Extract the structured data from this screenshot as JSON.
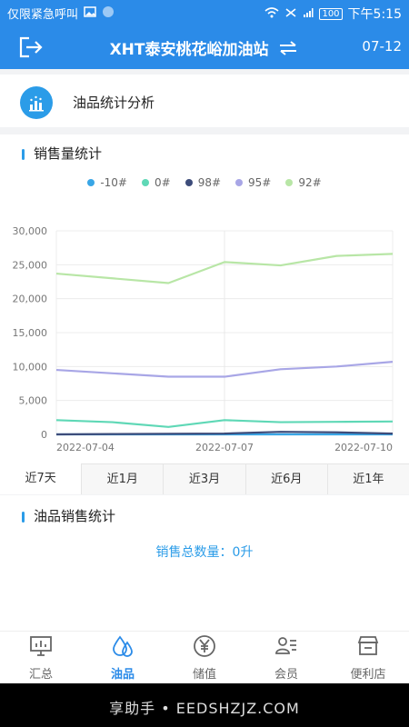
{
  "status_bar": {
    "carrier": "仅限紧急呼叫",
    "battery": "100",
    "time": "下午5:15"
  },
  "header": {
    "title": "XHT泰安桃花峪加油站",
    "date": "07-12"
  },
  "title_row": {
    "label": "油品统计分析"
  },
  "sales_volume": {
    "heading": "销售量统计"
  },
  "chart_data": {
    "type": "line",
    "x": [
      "2022-07-04",
      "2022-07-05",
      "2022-07-06",
      "2022-07-07",
      "2022-07-08",
      "2022-07-09",
      "2022-07-10"
    ],
    "x_tick_labels": [
      "2022-07-04",
      "2022-07-07",
      "2022-07-10"
    ],
    "ylim": [
      0,
      30000
    ],
    "y_ticks": [
      0,
      5000,
      10000,
      15000,
      20000,
      25000,
      30000
    ],
    "y_tick_labels": [
      "0",
      "5,000",
      "10,000",
      "15,000",
      "20,000",
      "25,000",
      "30,000"
    ],
    "grid": true,
    "legend_position": "top-center",
    "series": [
      {
        "name": "-10#",
        "color": "#39a6e6",
        "values": [
          0,
          0,
          0,
          0,
          0,
          0,
          0
        ]
      },
      {
        "name": "0#",
        "color": "#5fd8b6",
        "values": [
          2100,
          1800,
          1100,
          2100,
          1800,
          1850,
          1900
        ]
      },
      {
        "name": "98#",
        "color": "#3d4c7a",
        "values": [
          0,
          50,
          80,
          120,
          380,
          300,
          120
        ]
      },
      {
        "name": "95#",
        "color": "#a8a6e6",
        "values": [
          9500,
          9000,
          8500,
          8500,
          9600,
          10000,
          10700
        ]
      },
      {
        "name": "92#",
        "color": "#b8e6a6",
        "values": [
          23700,
          23000,
          22300,
          25400,
          24900,
          26300,
          26600
        ]
      }
    ]
  },
  "range_tabs": [
    {
      "label": "近7天",
      "active": true
    },
    {
      "label": "近1月",
      "active": false
    },
    {
      "label": "近3月",
      "active": false
    },
    {
      "label": "近6月",
      "active": false
    },
    {
      "label": "近1年",
      "active": false
    }
  ],
  "oil_sales": {
    "heading": "油品销售统计",
    "total": "销售总数量：0升"
  },
  "bottom_nav": [
    {
      "label": "汇总",
      "icon": "monitor-chart-icon",
      "active": false
    },
    {
      "label": "油品",
      "icon": "oil-drop-icon",
      "active": true
    },
    {
      "label": "储值",
      "icon": "yen-circle-icon",
      "active": false
    },
    {
      "label": "会员",
      "icon": "member-card-icon",
      "active": false
    },
    {
      "label": "便利店",
      "icon": "shop-icon",
      "active": false
    }
  ],
  "watermark": "享助手 • EEDSHZJZ.COM"
}
